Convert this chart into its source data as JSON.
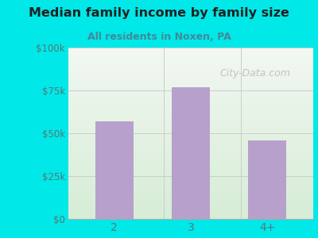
{
  "categories": [
    "2",
    "3",
    "4+"
  ],
  "values": [
    57000,
    77000,
    46000
  ],
  "bar_color": "#b8a0cc",
  "title": "Median family income by family size",
  "subtitle": "All residents in Noxen, PA",
  "subtitle_color": "#448899",
  "title_color": "#222222",
  "ylabel_ticks": [
    "$0",
    "$25k",
    "$50k",
    "$75k",
    "$100k"
  ],
  "ytick_values": [
    0,
    25000,
    50000,
    75000,
    100000
  ],
  "ylim": [
    0,
    100000
  ],
  "background_color": "#00e8e8",
  "plot_bg_top_color": "#e8f0e8",
  "plot_bg_bottom_color": "#ddeedd",
  "tick_color": "#557777",
  "watermark": "City-Data.com",
  "figsize": [
    4.0,
    3.0
  ],
  "dpi": 100
}
